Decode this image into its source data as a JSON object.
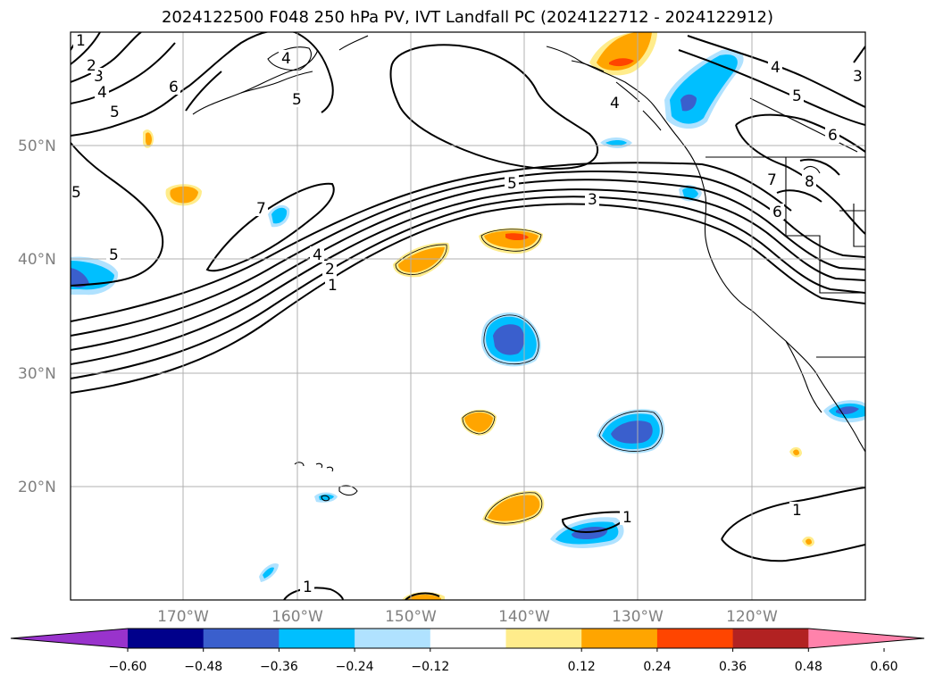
{
  "title": "2024122500 F048 250 hPa PV, IVT Landfall PC (2024122712 - 2024122912)",
  "map": {
    "region": "North Pacific / US West Coast",
    "lat_labels": [
      "50°N",
      "40°N",
      "30°N",
      "20°N"
    ],
    "lon_labels": [
      "170°W",
      "160°W",
      "150°W",
      "140°W",
      "130°W",
      "120°W"
    ],
    "contour_labels": [
      "1",
      "2",
      "3",
      "4",
      "5",
      "6",
      "7",
      "8"
    ],
    "contour_color": "#000000",
    "coastline_color": "#000000",
    "grid": true
  },
  "colorbar": {
    "ticks": [
      "−0.60",
      "−0.48",
      "−0.36",
      "−0.24",
      "−0.12",
      "0.12",
      "0.24",
      "0.36",
      "0.48",
      "0.60"
    ],
    "colors": [
      "#9933cc",
      "#00008b",
      "#3a5fcd",
      "#00bfff",
      "#b0e2ff",
      "#ffffff",
      "#ffec8b",
      "#ffa500",
      "#ff4500",
      "#b22222",
      "#ff82ab"
    ]
  }
}
